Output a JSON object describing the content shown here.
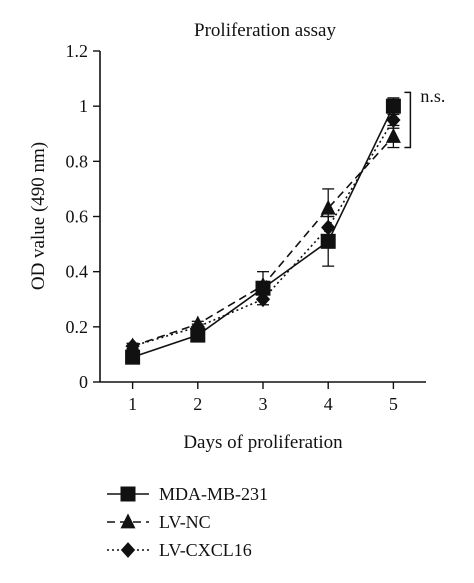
{
  "chart_data": {
    "type": "line",
    "title": "Proliferation assay",
    "xlabel": "Days of proliferation",
    "ylabel": "OD value (490 nm)",
    "x": [
      1,
      2,
      3,
      4,
      5
    ],
    "xlim": [
      0.5,
      5.5
    ],
    "ylim": [
      0,
      1.2
    ],
    "xticks": [
      "1",
      "2",
      "3",
      "4",
      "5"
    ],
    "yticks": [
      "0",
      "0.2",
      "0.4",
      "0.6",
      "0.8",
      "1",
      "1.2"
    ],
    "grid": false,
    "legend_position": "bottom",
    "series": [
      {
        "name": "MDA-MB-231",
        "marker": "square",
        "line_style": "solid",
        "values": [
          0.09,
          0.17,
          0.34,
          0.51,
          1.0
        ],
        "errors": [
          0.01,
          0.01,
          0.02,
          0.09,
          0.03
        ]
      },
      {
        "name": "LV-NC",
        "marker": "triangle",
        "line_style": "dashed",
        "values": [
          0.13,
          0.21,
          0.35,
          0.63,
          0.89
        ],
        "errors": [
          0.01,
          0.01,
          0.05,
          0.07,
          0.04
        ]
      },
      {
        "name": "LV-CXCL16",
        "marker": "diamond",
        "line_style": "dotted",
        "values": [
          0.13,
          0.2,
          0.3,
          0.56,
          0.95
        ],
        "errors": [
          0.01,
          0.01,
          0.02,
          0.04,
          0.03
        ]
      }
    ],
    "annotations": [
      {
        "text": "n.s.",
        "bracket_range": [
          0.85,
          1.05
        ],
        "at_x": 5
      }
    ]
  }
}
